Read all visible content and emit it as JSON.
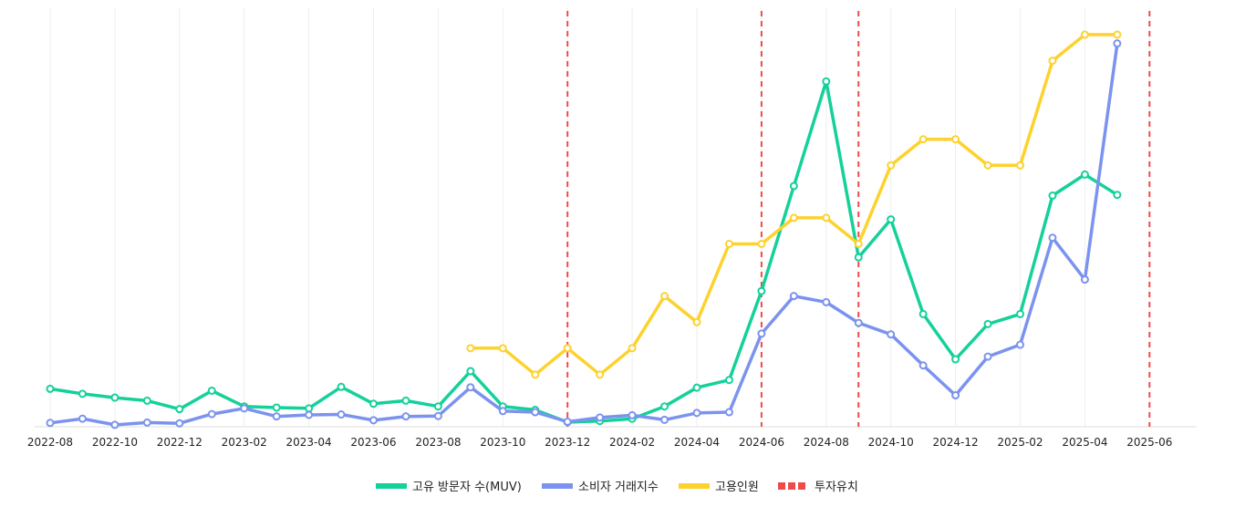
{
  "chart_data": {
    "type": "line",
    "title": "",
    "xlabel": "",
    "ylabel": "",
    "x": [
      "2022-08",
      "2022-09",
      "2022-10",
      "2022-11",
      "2022-12",
      "2023-01",
      "2023-02",
      "2023-03",
      "2023-04",
      "2023-05",
      "2023-06",
      "2023-07",
      "2023-08",
      "2023-09",
      "2023-10",
      "2023-11",
      "2023-12",
      "2024-01",
      "2024-02",
      "2024-03",
      "2024-04",
      "2024-05",
      "2024-06",
      "2024-07",
      "2024-08",
      "2024-09",
      "2024-10",
      "2024-11",
      "2024-12",
      "2025-01",
      "2025-02",
      "2025-03",
      "2025-04",
      "2025-05"
    ],
    "x_tick_labels": [
      "2022-08",
      "2022-10",
      "2022-12",
      "2023-02",
      "2023-04",
      "2023-06",
      "2023-08",
      "2023-10",
      "2023-12",
      "2024-02",
      "2024-04",
      "2024-06",
      "2024-08",
      "2024-10",
      "2024-12",
      "2025-02",
      "2025-04",
      "2025-06"
    ],
    "x_axis_end": "2025-06",
    "ylim": [
      0,
      100
    ],
    "y_axis_visible": false,
    "grid": "vertical",
    "legend_position": "bottom-center",
    "series": [
      {
        "name": "고유 방문자 수(MUV)",
        "color": "#14d19a",
        "values": [
          9.9,
          8.6,
          7.6,
          6.8,
          4.6,
          9.4,
          5.3,
          5.0,
          4.8,
          10.4,
          6.0,
          6.8,
          5.3,
          14.5,
          5.3,
          4.4,
          1.2,
          1.5,
          2.1,
          5.3,
          10.2,
          12.2,
          35.4,
          62.8,
          90.1,
          44.2,
          54.1,
          29.4,
          17.6,
          26.8,
          29.4,
          60.3,
          65.8,
          60.5
        ]
      },
      {
        "name": "소비자 거래지수",
        "color": "#7b93ef",
        "values": [
          1.0,
          2.1,
          0.5,
          1.1,
          0.9,
          3.3,
          4.8,
          2.7,
          3.1,
          3.2,
          1.7,
          2.7,
          2.8,
          10.3,
          4.1,
          3.8,
          1.3,
          2.4,
          3.0,
          1.8,
          3.6,
          3.8,
          24.3,
          34.1,
          32.5,
          27.1,
          24.1,
          16.0,
          8.2,
          18.3,
          21.4,
          49.3,
          38.4,
          100.0
        ]
      },
      {
        "name": "고용인원",
        "color": "#fdd22d",
        "values": [
          null,
          null,
          null,
          null,
          null,
          null,
          null,
          null,
          null,
          null,
          null,
          null,
          null,
          20.5,
          20.5,
          13.6,
          20.5,
          13.6,
          20.5,
          34.1,
          27.3,
          47.7,
          47.7,
          54.5,
          54.5,
          47.7,
          68.2,
          75.0,
          75.0,
          68.2,
          68.2,
          95.5,
          102.3,
          102.3
        ]
      }
    ],
    "investment_markers": {
      "name": "투자유치",
      "color": "#ef4b4b",
      "dates": [
        "2023-12",
        "2024-06",
        "2024-09",
        "2025-06"
      ]
    }
  }
}
